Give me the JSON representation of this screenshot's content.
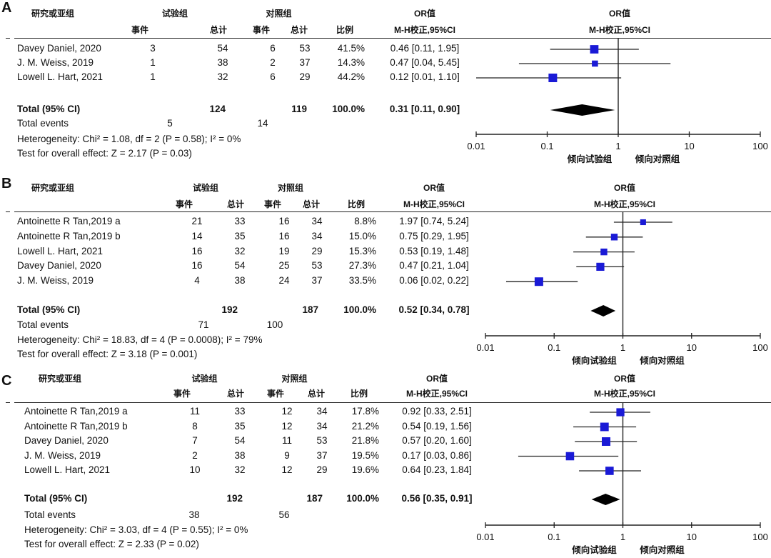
{
  "chart_data": [
    {
      "type": "forest",
      "panel": "A",
      "headers": {
        "study": "研究或亚组",
        "experimental": "试验组",
        "control": "对照组",
        "events": "事件",
        "total": "总计",
        "weight": "比例",
        "or_title": "OR值",
        "or_method": "M-H校正,95%CI",
        "plot_title": "OR值",
        "plot_method": "M-H校正,95%CI"
      },
      "studies": [
        {
          "name": "Davey Daniel, 2020",
          "exp_events": "3",
          "exp_total": "54",
          "ctrl_events": "6",
          "ctrl_total": "53",
          "weight": "41.5%",
          "ci_text": "0.46 [0.11, 1.95]",
          "or": 0.46,
          "lower": 0.11,
          "upper": 1.95
        },
        {
          "name": "J. M. Weiss, 2019",
          "exp_events": "1",
          "exp_total": "38",
          "ctrl_events": "2",
          "ctrl_total": "37",
          "weight": "14.3%",
          "ci_text": "0.47 [0.04, 5.45]",
          "or": 0.47,
          "lower": 0.04,
          "upper": 5.45
        },
        {
          "name": "Lowell L. Hart, 2021",
          "exp_events": "1",
          "exp_total": "32",
          "ctrl_events": "6",
          "ctrl_total": "29",
          "weight": "44.2%",
          "ci_text": "0.12 [0.01, 1.10]",
          "or": 0.12,
          "lower": 0.01,
          "upper": 1.1
        }
      ],
      "total": {
        "label": "Total (95% CI)",
        "exp_total": "124",
        "ctrl_total": "119",
        "weight": "100.0%",
        "ci_text": "0.31 [0.11, 0.90]",
        "or": 0.31,
        "lower": 0.11,
        "upper": 0.9
      },
      "total_events": {
        "label": "Total events",
        "exp": "5",
        "ctrl": "14"
      },
      "heterogeneity": "Heterogeneity: Chi² = 1.08, df = 2 (P = 0.58); I² = 0%",
      "overall_effect": "Test for overall effect: Z = 2.17 (P = 0.03)",
      "x_scale": "log",
      "xlim": [
        0.01,
        100
      ],
      "ticks": [
        "0.01",
        "0.1",
        "1",
        "10",
        "100"
      ],
      "favours_left": "倾向试验组",
      "favours_right": "倾向对照组"
    },
    {
      "type": "forest",
      "panel": "B",
      "headers": {
        "study": "研究或亚组",
        "experimental": "试验组",
        "control": "对照组",
        "events": "事件",
        "total": "总计",
        "weight": "比例",
        "or_title": "OR值",
        "or_method": "M-H校正,95%CI",
        "plot_title": "OR值",
        "plot_method": "M-H校正,95%CI"
      },
      "studies": [
        {
          "name": "Antoinette R Tan,2019 a",
          "exp_events": "21",
          "exp_total": "33",
          "ctrl_events": "16",
          "ctrl_total": "34",
          "weight": "8.8%",
          "ci_text": "1.97 [0.74, 5.24]",
          "or": 1.97,
          "lower": 0.74,
          "upper": 5.24
        },
        {
          "name": "Antoinette R Tan,2019 b",
          "exp_events": "14",
          "exp_total": "35",
          "ctrl_events": "16",
          "ctrl_total": "34",
          "weight": "15.0%",
          "ci_text": "0.75 [0.29, 1.95]",
          "or": 0.75,
          "lower": 0.29,
          "upper": 1.95
        },
        {
          "name": "Lowell L. Hart, 2021",
          "exp_events": "16",
          "exp_total": "32",
          "ctrl_events": "19",
          "ctrl_total": "29",
          "weight": "15.3%",
          "ci_text": "0.53 [0.19, 1.48]",
          "or": 0.53,
          "lower": 0.19,
          "upper": 1.48
        },
        {
          "name": "Davey Daniel, 2020",
          "exp_events": "16",
          "exp_total": "54",
          "ctrl_events": "25",
          "ctrl_total": "53",
          "weight": "27.3%",
          "ci_text": "0.47 [0.21, 1.04]",
          "or": 0.47,
          "lower": 0.21,
          "upper": 1.04
        },
        {
          "name": "J. M. Weiss, 2019",
          "exp_events": "4",
          "exp_total": "38",
          "ctrl_events": "24",
          "ctrl_total": "37",
          "weight": "33.5%",
          "ci_text": "0.06 [0.02, 0.22]",
          "or": 0.06,
          "lower": 0.02,
          "upper": 0.22
        }
      ],
      "total": {
        "label": "Total (95% CI)",
        "exp_total": "192",
        "ctrl_total": "187",
        "weight": "100.0%",
        "ci_text": "0.52 [0.34, 0.78]",
        "or": 0.52,
        "lower": 0.34,
        "upper": 0.78
      },
      "total_events": {
        "label": "Total events",
        "exp": "71",
        "ctrl": "100"
      },
      "heterogeneity": "Heterogeneity: Chi² = 18.83, df = 4 (P = 0.0008); I² = 79%",
      "overall_effect": "Test for overall effect: Z = 3.18 (P = 0.001)",
      "x_scale": "log",
      "xlim": [
        0.01,
        100
      ],
      "ticks": [
        "0.01",
        "0.1",
        "1",
        "10",
        "100"
      ],
      "favours_left": "倾向试验组",
      "favours_right": "倾向对照组"
    },
    {
      "type": "forest",
      "panel": "C",
      "headers": {
        "study": "研究或亚组",
        "experimental": "试验组",
        "control": "对照组",
        "events": "事件",
        "total": "总计",
        "weight": "比例",
        "or_title": "OR值",
        "or_method": "M-H校正,95%CI",
        "plot_title": "OR值",
        "plot_method": "M-H校正,95%CI"
      },
      "studies": [
        {
          "name": "Antoinette R Tan,2019 a",
          "exp_events": "11",
          "exp_total": "33",
          "ctrl_events": "12",
          "ctrl_total": "34",
          "weight": "17.8%",
          "ci_text": "0.92 [0.33, 2.51]",
          "or": 0.92,
          "lower": 0.33,
          "upper": 2.51
        },
        {
          "name": "Antoinette R Tan,2019 b",
          "exp_events": "8",
          "exp_total": "35",
          "ctrl_events": "12",
          "ctrl_total": "34",
          "weight": "21.2%",
          "ci_text": "0.54 [0.19, 1.56]",
          "or": 0.54,
          "lower": 0.19,
          "upper": 1.56
        },
        {
          "name": "Davey Daniel, 2020",
          "exp_events": "7",
          "exp_total": "54",
          "ctrl_events": "11",
          "ctrl_total": "53",
          "weight": "21.8%",
          "ci_text": "0.57 [0.20, 1.60]",
          "or": 0.57,
          "lower": 0.2,
          "upper": 1.6
        },
        {
          "name": "J. M. Weiss, 2019",
          "exp_events": "2",
          "exp_total": "38",
          "ctrl_events": "9",
          "ctrl_total": "37",
          "weight": "19.5%",
          "ci_text": "0.17 [0.03, 0.86]",
          "or": 0.17,
          "lower": 0.03,
          "upper": 0.86
        },
        {
          "name": "Lowell L. Hart, 2021",
          "exp_events": "10",
          "exp_total": "32",
          "ctrl_events": "12",
          "ctrl_total": "29",
          "weight": "19.6%",
          "ci_text": "0.64 [0.23, 1.84]",
          "or": 0.64,
          "lower": 0.23,
          "upper": 1.84
        }
      ],
      "total": {
        "label": "Total (95% CI)",
        "exp_total": "192",
        "ctrl_total": "187",
        "weight": "100.0%",
        "ci_text": "0.56 [0.35, 0.91]",
        "or": 0.56,
        "lower": 0.35,
        "upper": 0.91
      },
      "total_events": {
        "label": "Total events",
        "exp": "38",
        "ctrl": "56"
      },
      "heterogeneity": "Heterogeneity: Chi² = 3.03, df = 4 (P = 0.55); I² = 0%",
      "overall_effect": "Test for overall effect: Z = 2.33 (P = 0.02)",
      "x_scale": "log",
      "xlim": [
        0.01,
        100
      ],
      "ticks": [
        "0.01",
        "0.1",
        "1",
        "10",
        "100"
      ],
      "favours_left": "倾向试验组",
      "favours_right": "倾向对照组"
    }
  ],
  "colors": {
    "marker": "#1a1ad6",
    "diamond": "#000000",
    "line": "#222222"
  }
}
